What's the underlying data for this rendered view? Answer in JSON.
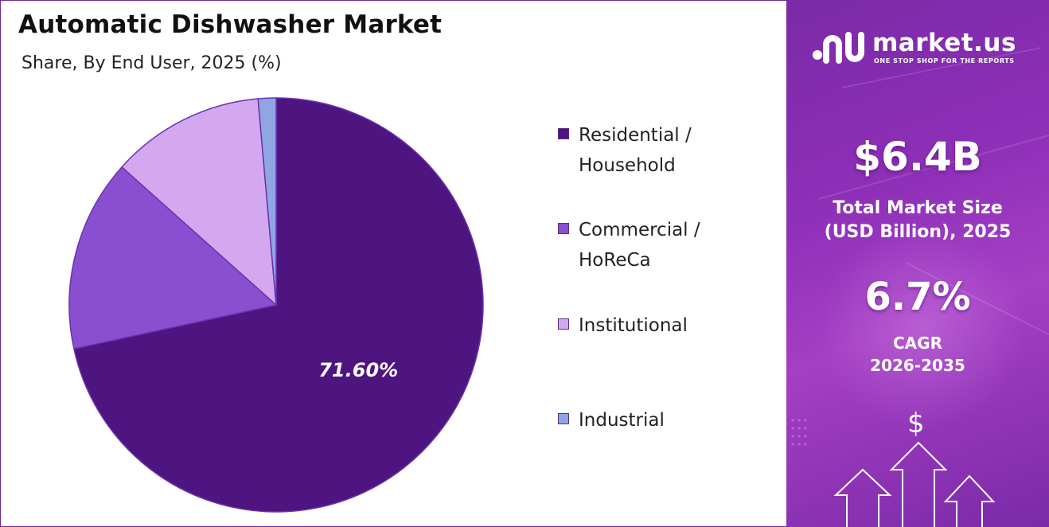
{
  "header": {
    "title": "Automatic Dishwasher Market",
    "subtitle": "Share, By End User, 2025 (%)"
  },
  "chart_data": {
    "type": "pie",
    "title": "Automatic Dishwasher Market",
    "subtitle": "Share, By End User, 2025 (%)",
    "categories": [
      "Residential / Household",
      "Commercial / HoReCa",
      "Institutional",
      "Industrial"
    ],
    "values": [
      71.6,
      15.0,
      12.0,
      1.4
    ],
    "colors": [
      "#4e1580",
      "#8a4fd1",
      "#d4a8ef",
      "#8fa6e0"
    ],
    "data_labels": [
      "71.60%",
      "",
      "",
      ""
    ],
    "legend_position": "right"
  },
  "legend": {
    "items": [
      {
        "line1": "Residential /",
        "line2": "Household"
      },
      {
        "line1": "Commercial /",
        "line2": "HoReCa"
      },
      {
        "line1": "Institutional",
        "line2": ""
      },
      {
        "line1": "Industrial",
        "line2": ""
      }
    ]
  },
  "sidebar": {
    "brand": "market.us",
    "tagline": "ONE STOP SHOP FOR THE REPORTS",
    "market_size_value": "$6.4B",
    "market_size_label_1": "Total Market Size",
    "market_size_label_2": "(USD Billion), 2025",
    "cagr_value": "6.7%",
    "cagr_label_1": "CAGR",
    "cagr_label_2": "2026-2035",
    "dollar_symbol": "$"
  }
}
